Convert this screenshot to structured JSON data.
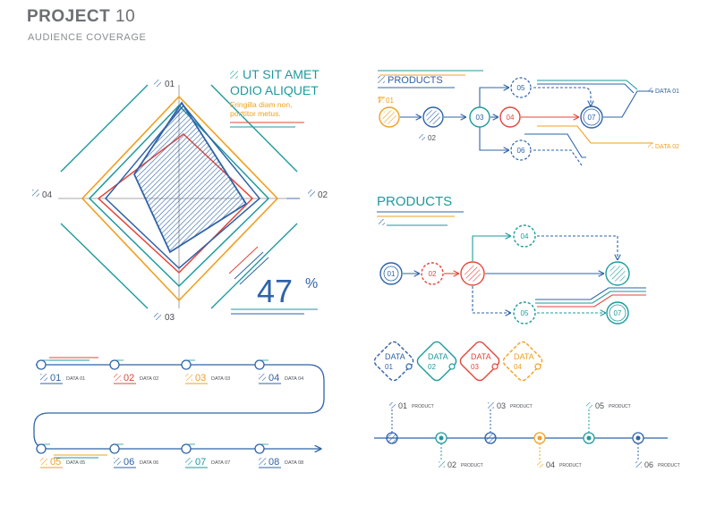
{
  "header": {
    "title_bold": "PROJECT",
    "title_num": "10",
    "subtitle": "AUDIENCE COVERAGE"
  },
  "colors": {
    "blue": "#2f63a8",
    "teal": "#1e9a9e",
    "orange": "#f0a020",
    "red": "#e4463a",
    "gray": "#8a8c90",
    "dark": "#4d4f54"
  },
  "radar": {
    "axes": [
      "01",
      "02",
      "03",
      "04"
    ],
    "heading_line1": "UT SIT AMET",
    "heading_line2": "ODIO ALIQUET",
    "desc_line1": "Fringilla diam non,",
    "desc_line2": "porttitor metus.",
    "percent": "47",
    "percent_sign": "%",
    "series_colors": [
      "#e4463a",
      "#f0a020",
      "#1e9a9e",
      "#2f63a8"
    ]
  },
  "timeline_left": {
    "top": [
      {
        "num": "01",
        "label": "DATA 01",
        "color": "#2f63a8"
      },
      {
        "num": "02",
        "label": "DATA 02",
        "color": "#e4463a"
      },
      {
        "num": "03",
        "label": "DATA 03",
        "color": "#f0a020"
      },
      {
        "num": "04",
        "label": "DATA 04",
        "color": "#2f63a8"
      }
    ],
    "bottom": [
      {
        "num": "05",
        "label": "DATA 05",
        "color": "#f0a020"
      },
      {
        "num": "06",
        "label": "DATA 06",
        "color": "#2f63a8"
      },
      {
        "num": "07",
        "label": "DATA 07",
        "color": "#1e9a9e"
      },
      {
        "num": "08",
        "label": "DATA 08",
        "color": "#2f63a8"
      }
    ]
  },
  "flow1": {
    "title": "PRODUCTS",
    "n01": "01",
    "n02": "02",
    "n03": "03",
    "n04": "04",
    "n05": "05",
    "n06": "06",
    "n07": "07",
    "data1": "DATA 01",
    "data2": "DATA 02"
  },
  "flow2": {
    "title": "PRODUCTS",
    "n01": "01",
    "n02": "02",
    "n04": "04",
    "n05": "05",
    "n07": "07"
  },
  "data_tags": [
    {
      "top": "DATA",
      "num": "01",
      "color": "#2f63a8"
    },
    {
      "top": "DATA",
      "num": "02",
      "color": "#1e9a9e"
    },
    {
      "top": "DATA",
      "num": "03",
      "color": "#e4463a"
    },
    {
      "top": "DATA",
      "num": "04",
      "color": "#f0a020"
    }
  ],
  "timeline_right": {
    "items": [
      {
        "num": "01",
        "label": "PRODUCT",
        "side": "top",
        "color": "#2f63a8"
      },
      {
        "num": "02",
        "label": "PRODUCT",
        "side": "bottom",
        "color": "#1e9a9e"
      },
      {
        "num": "03",
        "label": "PRODUCT",
        "side": "top",
        "color": "#2f63a8"
      },
      {
        "num": "04",
        "label": "PRODUCT",
        "side": "bottom",
        "color": "#f0a020"
      },
      {
        "num": "05",
        "label": "PRODUCT",
        "side": "top",
        "color": "#1e9a9e"
      },
      {
        "num": "06",
        "label": "PRODUCT",
        "side": "bottom",
        "color": "#2f63a8"
      }
    ]
  }
}
